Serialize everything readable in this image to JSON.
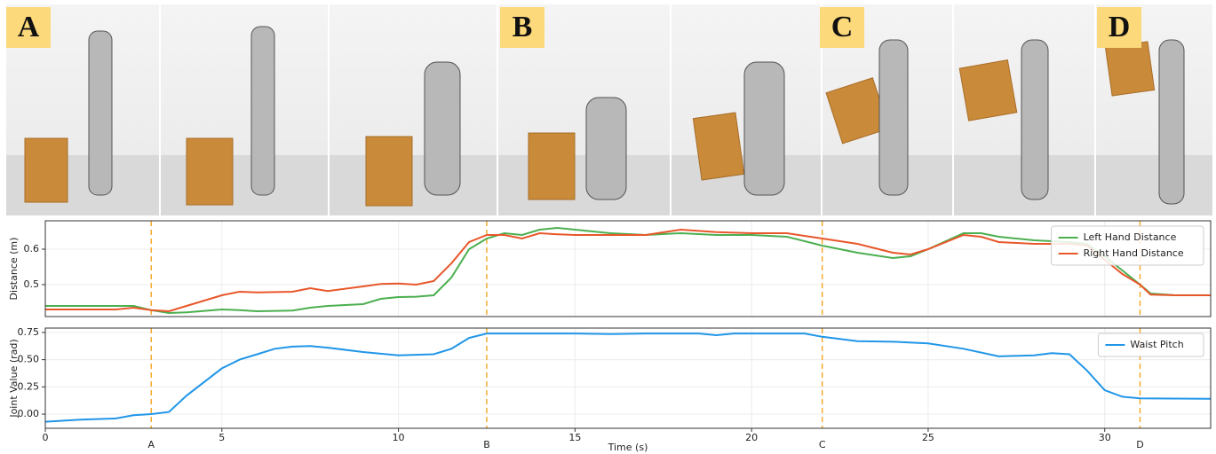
{
  "photo_strip": {
    "labels": [
      "A",
      "B",
      "C",
      "D"
    ]
  },
  "phase_markers": {
    "x": [
      3,
      12.5,
      22,
      31
    ],
    "labels": [
      "A",
      "B",
      "C",
      "D"
    ],
    "color": "#f5a623"
  },
  "chart_data": [
    {
      "type": "line",
      "ylabel": "Distance (m)",
      "xlim": [
        0,
        33
      ],
      "ylim": [
        0.41,
        0.68
      ],
      "yticks": [
        0.5,
        0.6
      ],
      "xticks": [
        0,
        5,
        10,
        15,
        20,
        25,
        30
      ],
      "grid": true,
      "legend": "upper-right",
      "x": [
        0,
        2,
        2.5,
        3,
        3.5,
        4,
        5,
        5.5,
        6,
        7,
        7.5,
        8,
        9,
        9.5,
        10,
        10.5,
        11,
        11.5,
        12,
        12.5,
        13,
        13.5,
        14,
        14.5,
        15,
        16,
        17,
        18,
        19,
        20,
        21,
        22,
        23,
        24,
        24.5,
        25,
        26,
        26.5,
        27,
        28,
        29,
        29.5,
        30,
        30.5,
        31,
        31.3,
        32,
        33
      ],
      "series": [
        {
          "name": "Left Hand Distance",
          "color": "#4caf50",
          "values": [
            0.44,
            0.44,
            0.44,
            0.428,
            0.42,
            0.422,
            0.43,
            0.428,
            0.425,
            0.427,
            0.435,
            0.44,
            0.445,
            0.46,
            0.465,
            0.466,
            0.47,
            0.52,
            0.6,
            0.63,
            0.645,
            0.64,
            0.655,
            0.66,
            0.655,
            0.645,
            0.64,
            0.645,
            0.64,
            0.64,
            0.635,
            0.61,
            0.59,
            0.575,
            0.58,
            0.6,
            0.645,
            0.645,
            0.635,
            0.625,
            0.62,
            0.615,
            0.58,
            0.54,
            0.5,
            0.475,
            0.47,
            0.47
          ]
        },
        {
          "name": "Right Hand Distance",
          "color": "#e8572a",
          "values": [
            0.43,
            0.43,
            0.435,
            0.428,
            0.425,
            0.44,
            0.47,
            0.48,
            0.478,
            0.48,
            0.49,
            0.482,
            0.495,
            0.502,
            0.503,
            0.5,
            0.51,
            0.56,
            0.62,
            0.64,
            0.64,
            0.63,
            0.645,
            0.642,
            0.64,
            0.64,
            0.64,
            0.655,
            0.648,
            0.645,
            0.645,
            0.63,
            0.615,
            0.59,
            0.585,
            0.6,
            0.64,
            0.635,
            0.62,
            0.615,
            0.615,
            0.61,
            0.57,
            0.53,
            0.5,
            0.472,
            0.47,
            0.47
          ]
        }
      ]
    },
    {
      "type": "line",
      "ylabel": "Joint Value (rad)",
      "xlabel": "Time (s)",
      "xlim": [
        0,
        33
      ],
      "ylim": [
        -0.13,
        0.79
      ],
      "yticks": [
        {
          "value": 0,
          "label": "0.00"
        },
        {
          "value": 0.25,
          "label": "0.25"
        },
        {
          "value": 0.5,
          "label": "0.50"
        },
        0.75
      ],
      "xticks": [
        0,
        5,
        10,
        15,
        20,
        25,
        30
      ],
      "grid": true,
      "legend": "upper-right",
      "x": [
        0,
        1,
        2,
        2.5,
        3,
        3.5,
        4,
        5,
        5.5,
        6,
        6.5,
        7,
        7.5,
        8,
        9,
        10,
        11,
        11.5,
        12,
        12.5,
        15,
        16,
        17,
        18.5,
        19,
        19.5,
        21.5,
        22,
        23,
        24,
        25,
        26,
        27,
        28,
        28.5,
        29,
        29.5,
        30,
        30.5,
        31,
        33
      ],
      "series": [
        {
          "name": "Waist Pitch",
          "color": "#2196e8",
          "values": [
            -0.07,
            -0.05,
            -0.04,
            -0.01,
            0,
            0.02,
            0.17,
            0.42,
            0.5,
            0.55,
            0.6,
            0.62,
            0.625,
            0.61,
            0.57,
            0.54,
            0.55,
            0.6,
            0.7,
            0.74,
            0.74,
            0.735,
            0.74,
            0.74,
            0.725,
            0.74,
            0.74,
            0.71,
            0.67,
            0.665,
            0.65,
            0.6,
            0.53,
            0.54,
            0.56,
            0.55,
            0.4,
            0.22,
            0.16,
            0.145,
            0.14
          ]
        }
      ]
    }
  ]
}
